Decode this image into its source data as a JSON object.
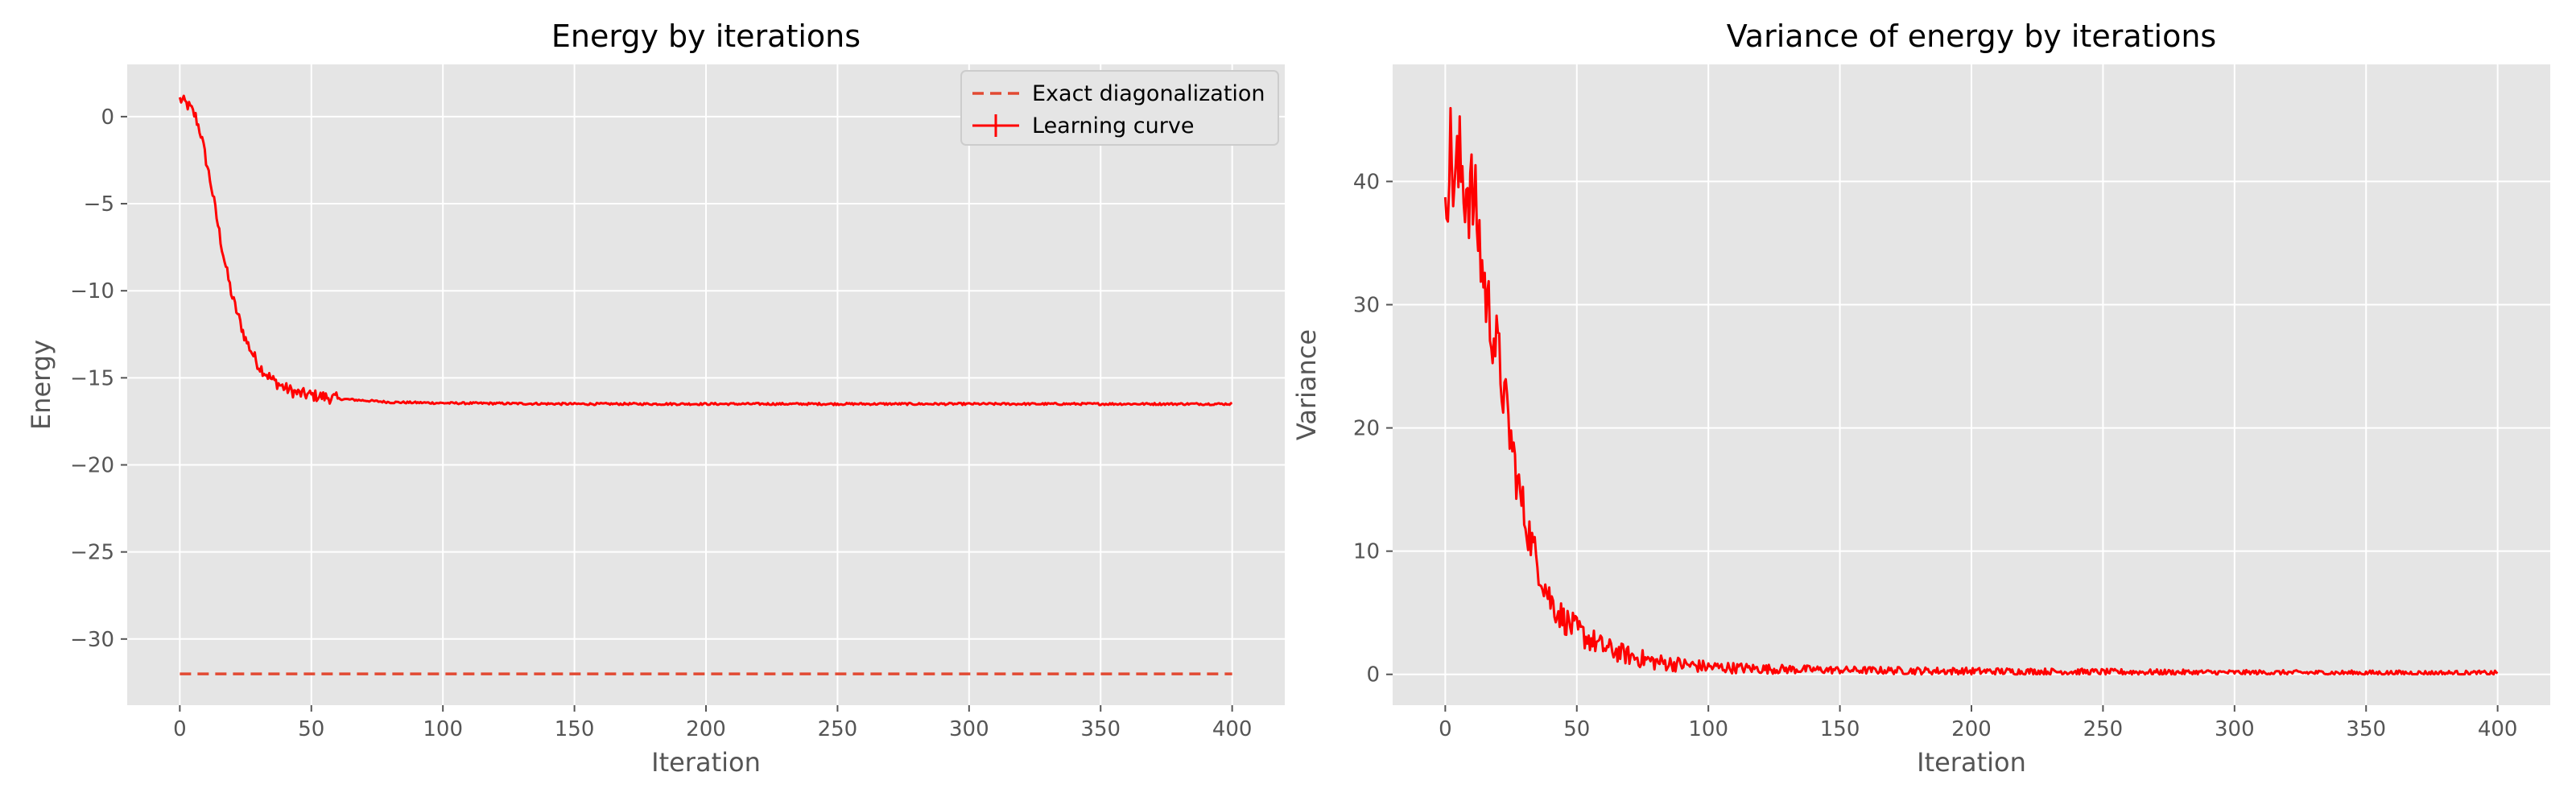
{
  "colors": {
    "panel_bg": "#E5E5E5",
    "grid": "#FFFFFF",
    "learning_curve": "#FF0000",
    "exact_line": "#E24A33",
    "text": "#555555"
  },
  "chart_data": [
    {
      "type": "line",
      "title": "Energy by iterations",
      "xlabel": "Iteration",
      "ylabel": "Energy",
      "xlim": [
        -20,
        420
      ],
      "ylim": [
        -33.8,
        3
      ],
      "xticks": [
        0,
        50,
        100,
        150,
        200,
        250,
        300,
        350,
        400
      ],
      "yticks": [
        0,
        -5,
        -10,
        -15,
        -20,
        -25,
        -30
      ],
      "ytick_labels": [
        "0",
        "−5",
        "−10",
        "−15",
        "−20",
        "−25",
        "−30"
      ],
      "grid": true,
      "legend_placement": "top-right",
      "series": [
        {
          "name": "Exact diagonalization",
          "style": "dashed",
          "x": [
            0,
            400
          ],
          "y": [
            -32.0,
            -32.0
          ]
        },
        {
          "name": "Learning curve",
          "style": "solid with error bars",
          "x": [
            0,
            2,
            4,
            6,
            8,
            10,
            12,
            14,
            16,
            18,
            20,
            25,
            30,
            35,
            40,
            45,
            50,
            60,
            70,
            80,
            100,
            150,
            200,
            250,
            300,
            350,
            400
          ],
          "y": [
            1.0,
            0.8,
            0.5,
            0.0,
            -1.0,
            -2.5,
            -4.0,
            -5.8,
            -7.5,
            -9.0,
            -10.4,
            -12.8,
            -14.3,
            -15.1,
            -15.6,
            -15.9,
            -16.0,
            -16.2,
            -16.3,
            -16.4,
            -16.45,
            -16.5,
            -16.5,
            -16.5,
            -16.5,
            -16.5,
            -16.5
          ]
        }
      ]
    },
    {
      "type": "line",
      "title": "Variance of energy by iterations",
      "xlabel": "Iteration",
      "ylabel": "Variance",
      "xlim": [
        -20,
        420
      ],
      "ylim": [
        -2.5,
        49.5
      ],
      "xticks": [
        0,
        50,
        100,
        150,
        200,
        250,
        300,
        350,
        400
      ],
      "yticks": [
        0,
        10,
        20,
        30,
        40
      ],
      "ytick_labels": [
        "0",
        "10",
        "20",
        "30",
        "40"
      ],
      "grid": true,
      "series": [
        {
          "style": "solid",
          "x": [
            0,
            2,
            4,
            6,
            8,
            10,
            12,
            14,
            16,
            18,
            20,
            22,
            25,
            28,
            30,
            35,
            40,
            45,
            50,
            60,
            70,
            80,
            90,
            100,
            120,
            150,
            200,
            250,
            300,
            350,
            400
          ],
          "y": [
            41,
            42,
            40,
            41,
            40,
            39,
            37,
            33,
            30,
            28,
            26,
            23,
            19,
            15,
            13,
            9,
            6,
            4.5,
            3.5,
            2.2,
            1.5,
            1.0,
            0.8,
            0.6,
            0.45,
            0.35,
            0.25,
            0.2,
            0.15,
            0.12,
            0.1
          ],
          "noise": [
            5,
            5,
            5,
            5,
            5,
            4,
            4,
            3.5,
            3.5,
            3,
            3,
            2.5,
            2.5,
            2,
            2,
            1.5,
            1.5,
            1.2,
            1.2,
            0.9,
            0.8,
            0.7,
            0.6,
            0.5,
            0.4,
            0.3,
            0.3,
            0.25,
            0.2,
            0.2,
            0.2
          ]
        }
      ]
    }
  ]
}
